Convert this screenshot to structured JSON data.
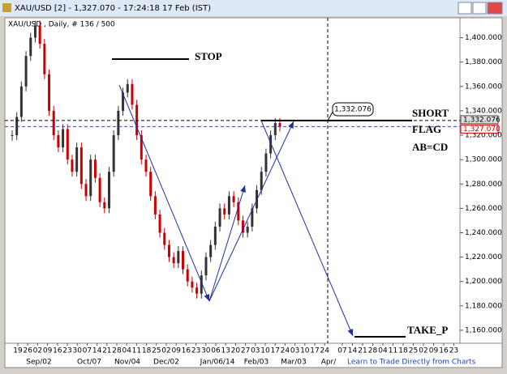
{
  "window": {
    "title": "XAU/USD [2] - 1,327.070 - 17:24:18 17 Feb (IST)"
  },
  "chart_data": {
    "type": "candlestick",
    "subtitle": "XAU/USD , Daily, # 136 / 500",
    "closes": [
      1320,
      1335,
      1360,
      1385,
      1400,
      1410,
      1395,
      1370,
      1340,
      1320,
      1310,
      1325,
      1300,
      1290,
      1310,
      1280,
      1270,
      1300,
      1285,
      1265,
      1260,
      1290,
      1320,
      1340,
      1355,
      1362,
      1345,
      1320,
      1300,
      1290,
      1270,
      1255,
      1240,
      1230,
      1220,
      1215,
      1225,
      1210,
      1200,
      1195,
      1190,
      1205,
      1220,
      1230,
      1245,
      1260,
      1255,
      1270,
      1265,
      1250,
      1240,
      1245,
      1260,
      1275,
      1290,
      1305,
      1320,
      1330,
      1327
    ],
    "ylim": [
      1152,
      1411
    ],
    "yticks": [
      {
        "value": 1160,
        "label": "1,160.000"
      },
      {
        "value": 1180,
        "label": "1,180.000"
      },
      {
        "value": 1200,
        "label": "1,200.000"
      },
      {
        "value": 1220,
        "label": "1,220.000"
      },
      {
        "value": 1240,
        "label": "1,240.000"
      },
      {
        "value": 1260,
        "label": "1,260.000"
      },
      {
        "value": 1280,
        "label": "1,280.000"
      },
      {
        "value": 1300,
        "label": "1,300.000"
      },
      {
        "value": 1320,
        "label": "1,320.000"
      },
      {
        "value": 1340,
        "label": "1,340.000"
      },
      {
        "value": 1360,
        "label": "1,360.000"
      },
      {
        "value": 1380,
        "label": "1,380.000"
      },
      {
        "value": 1400,
        "label": "1,400.000"
      }
    ],
    "x_day_labels": [
      "19",
      "26",
      "02",
      "09",
      "16",
      "23",
      "30",
      "07",
      "14",
      "21",
      "28",
      "04",
      "11",
      "18",
      "25",
      "02",
      "09",
      "16",
      "23",
      "30",
      "06",
      "13",
      "20",
      "27",
      "03",
      "10",
      "17",
      "24",
      "03",
      "10",
      "17",
      "24",
      "07",
      "14",
      "21",
      "28",
      "04",
      "11",
      "18",
      "25",
      "02",
      "09",
      "16",
      "23"
    ],
    "x_month_labels": [
      "Sep/02",
      "Oct/07",
      "Nov/04",
      "Dec/02",
      "Jan/06/14",
      "Feb/03",
      "Mar/03",
      "Apr/"
    ],
    "annotations": [
      "STOP",
      "SHORT",
      "FLAG",
      "AB=CD",
      "TAKE_P"
    ],
    "marker_label": "1,332.076",
    "price_tags": [
      {
        "value": 1332.076,
        "label": "1,332.076"
      },
      {
        "value": 1327.07,
        "label": "1,327.070"
      }
    ]
  },
  "footer": "Learn to Trade Directly from Charts"
}
